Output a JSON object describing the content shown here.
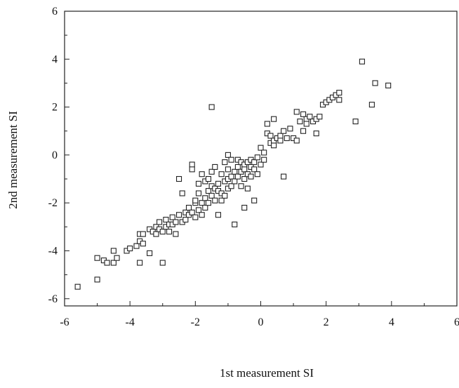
{
  "chart_data": {
    "type": "scatter",
    "title": "",
    "xlabel": "1st measurement SI",
    "ylabel": "2nd measurement SI",
    "xlim": [
      -6,
      6
    ],
    "ylim": [
      -6.3,
      6
    ],
    "xticks": [
      -6,
      -4,
      -2,
      0,
      2,
      4,
      6
    ],
    "yticks": [
      -6,
      -4,
      -2,
      0,
      2,
      4,
      6
    ],
    "xtick_labels": [
      "-6",
      "-4",
      "-2",
      "0",
      "2",
      "4",
      "6"
    ],
    "ytick_labels": [
      "-6",
      "-4",
      "-2",
      "0",
      "2",
      "4",
      "6"
    ],
    "grid": false,
    "marker": "open-square",
    "marker_color": "#222222",
    "series": [
      {
        "points": [
          [
            -5.6,
            -5.5
          ],
          [
            -5.0,
            -5.2
          ],
          [
            -5.0,
            -4.3
          ],
          [
            -4.8,
            -4.4
          ],
          [
            -4.7,
            -4.5
          ],
          [
            -4.5,
            -4.5
          ],
          [
            -4.5,
            -4.0
          ],
          [
            -4.4,
            -4.3
          ],
          [
            -4.1,
            -4.0
          ],
          [
            -4.0,
            -3.9
          ],
          [
            -3.8,
            -3.8
          ],
          [
            -3.7,
            -3.6
          ],
          [
            -3.7,
            -4.5
          ],
          [
            -3.7,
            -3.3
          ],
          [
            -3.6,
            -3.3
          ],
          [
            -3.6,
            -3.7
          ],
          [
            -3.4,
            -4.1
          ],
          [
            -3.4,
            -3.1
          ],
          [
            -3.3,
            -3.2
          ],
          [
            -3.2,
            -3.3
          ],
          [
            -3.2,
            -3.0
          ],
          [
            -3.1,
            -3.1
          ],
          [
            -3.1,
            -2.8
          ],
          [
            -3.0,
            -3.2
          ],
          [
            -3.0,
            -4.5
          ],
          [
            -2.9,
            -3.0
          ],
          [
            -2.9,
            -2.7
          ],
          [
            -2.8,
            -2.9
          ],
          [
            -2.8,
            -3.2
          ],
          [
            -2.7,
            -2.6
          ],
          [
            -2.7,
            -2.9
          ],
          [
            -2.6,
            -3.3
          ],
          [
            -2.6,
            -2.8
          ],
          [
            -2.5,
            -2.5
          ],
          [
            -2.5,
            -1.0
          ],
          [
            -2.4,
            -2.8
          ],
          [
            -2.4,
            -1.6
          ],
          [
            -2.3,
            -2.4
          ],
          [
            -2.3,
            -2.7
          ],
          [
            -2.2,
            -2.5
          ],
          [
            -2.2,
            -2.2
          ],
          [
            -2.1,
            -2.4
          ],
          [
            -2.1,
            -0.4
          ],
          [
            -2.1,
            -0.6
          ],
          [
            -2.0,
            -2.0
          ],
          [
            -2.0,
            -2.6
          ],
          [
            -2.0,
            -1.9
          ],
          [
            -1.9,
            -2.3
          ],
          [
            -1.9,
            -1.6
          ],
          [
            -1.9,
            -1.2
          ],
          [
            -1.8,
            -2.0
          ],
          [
            -1.8,
            -2.5
          ],
          [
            -1.8,
            -0.8
          ],
          [
            -1.7,
            -1.8
          ],
          [
            -1.7,
            -2.2
          ],
          [
            -1.7,
            -1.1
          ],
          [
            -1.6,
            -1.5
          ],
          [
            -1.6,
            -2.0
          ],
          [
            -1.6,
            -1.0
          ],
          [
            -1.5,
            -1.7
          ],
          [
            -1.5,
            -0.7
          ],
          [
            -1.5,
            -1.3
          ],
          [
            -1.4,
            -1.4
          ],
          [
            -1.4,
            -1.9
          ],
          [
            -1.4,
            -0.5
          ],
          [
            -1.3,
            -1.5
          ],
          [
            -1.3,
            -1.2
          ],
          [
            -1.3,
            -2.5
          ],
          [
            -1.2,
            -1.6
          ],
          [
            -1.2,
            -0.8
          ],
          [
            -1.2,
            -1.9
          ],
          [
            -1.1,
            -1.1
          ],
          [
            -1.1,
            -0.3
          ],
          [
            -1.1,
            -1.7
          ],
          [
            -1.0,
            -1.0
          ],
          [
            -1.0,
            -0.6
          ],
          [
            -1.0,
            -1.4
          ],
          [
            -1.0,
            0.0
          ],
          [
            -0.9,
            -0.9
          ],
          [
            -0.9,
            -1.3
          ],
          [
            -0.9,
            -0.2
          ],
          [
            -0.8,
            -0.7
          ],
          [
            -0.8,
            -1.1
          ],
          [
            -0.8,
            -2.9
          ],
          [
            -0.7,
            -0.5
          ],
          [
            -0.7,
            -0.9
          ],
          [
            -0.7,
            -0.2
          ],
          [
            -0.6,
            -0.7
          ],
          [
            -0.6,
            -1.3
          ],
          [
            -0.6,
            -0.3
          ],
          [
            -0.5,
            -0.4
          ],
          [
            -0.5,
            -1.0
          ],
          [
            -0.5,
            -0.6
          ],
          [
            -0.5,
            -2.2
          ],
          [
            -0.4,
            -0.3
          ],
          [
            -0.4,
            -0.8
          ],
          [
            -0.4,
            -1.4
          ],
          [
            -0.3,
            -0.5
          ],
          [
            -0.3,
            -0.2
          ],
          [
            -0.3,
            -0.9
          ],
          [
            -0.2,
            -0.6
          ],
          [
            -0.2,
            -0.3
          ],
          [
            -0.2,
            -1.9
          ],
          [
            -0.1,
            -0.1
          ],
          [
            -0.1,
            -0.8
          ],
          [
            0.0,
            -0.4
          ],
          [
            0.0,
            0.3
          ],
          [
            0.1,
            -0.2
          ],
          [
            0.1,
            0.1
          ],
          [
            0.2,
            0.9
          ],
          [
            0.2,
            1.3
          ],
          [
            0.3,
            0.5
          ],
          [
            0.3,
            0.8
          ],
          [
            0.4,
            0.4
          ],
          [
            0.4,
            1.5
          ],
          [
            0.4,
            0.6
          ],
          [
            0.5,
            0.7
          ],
          [
            0.6,
            0.8
          ],
          [
            0.6,
            0.6
          ],
          [
            0.7,
            1.0
          ],
          [
            0.7,
            -0.9
          ],
          [
            0.8,
            0.7
          ],
          [
            0.9,
            1.1
          ],
          [
            1.0,
            0.7
          ],
          [
            1.1,
            1.8
          ],
          [
            1.1,
            0.6
          ],
          [
            1.2,
            1.4
          ],
          [
            1.3,
            1.7
          ],
          [
            1.3,
            1.0
          ],
          [
            1.4,
            1.5
          ],
          [
            1.4,
            1.3
          ],
          [
            1.5,
            1.6
          ],
          [
            1.6,
            1.4
          ],
          [
            1.7,
            1.5
          ],
          [
            1.7,
            0.9
          ],
          [
            1.8,
            1.6
          ],
          [
            1.9,
            2.1
          ],
          [
            2.0,
            2.2
          ],
          [
            2.1,
            2.3
          ],
          [
            2.2,
            2.4
          ],
          [
            2.3,
            2.5
          ],
          [
            2.4,
            2.6
          ],
          [
            2.4,
            2.3
          ],
          [
            2.9,
            1.4
          ],
          [
            3.1,
            3.9
          ],
          [
            3.4,
            2.1
          ],
          [
            3.5,
            3.0
          ],
          [
            3.9,
            2.9
          ],
          [
            -1.5,
            2.0
          ]
        ]
      }
    ]
  }
}
